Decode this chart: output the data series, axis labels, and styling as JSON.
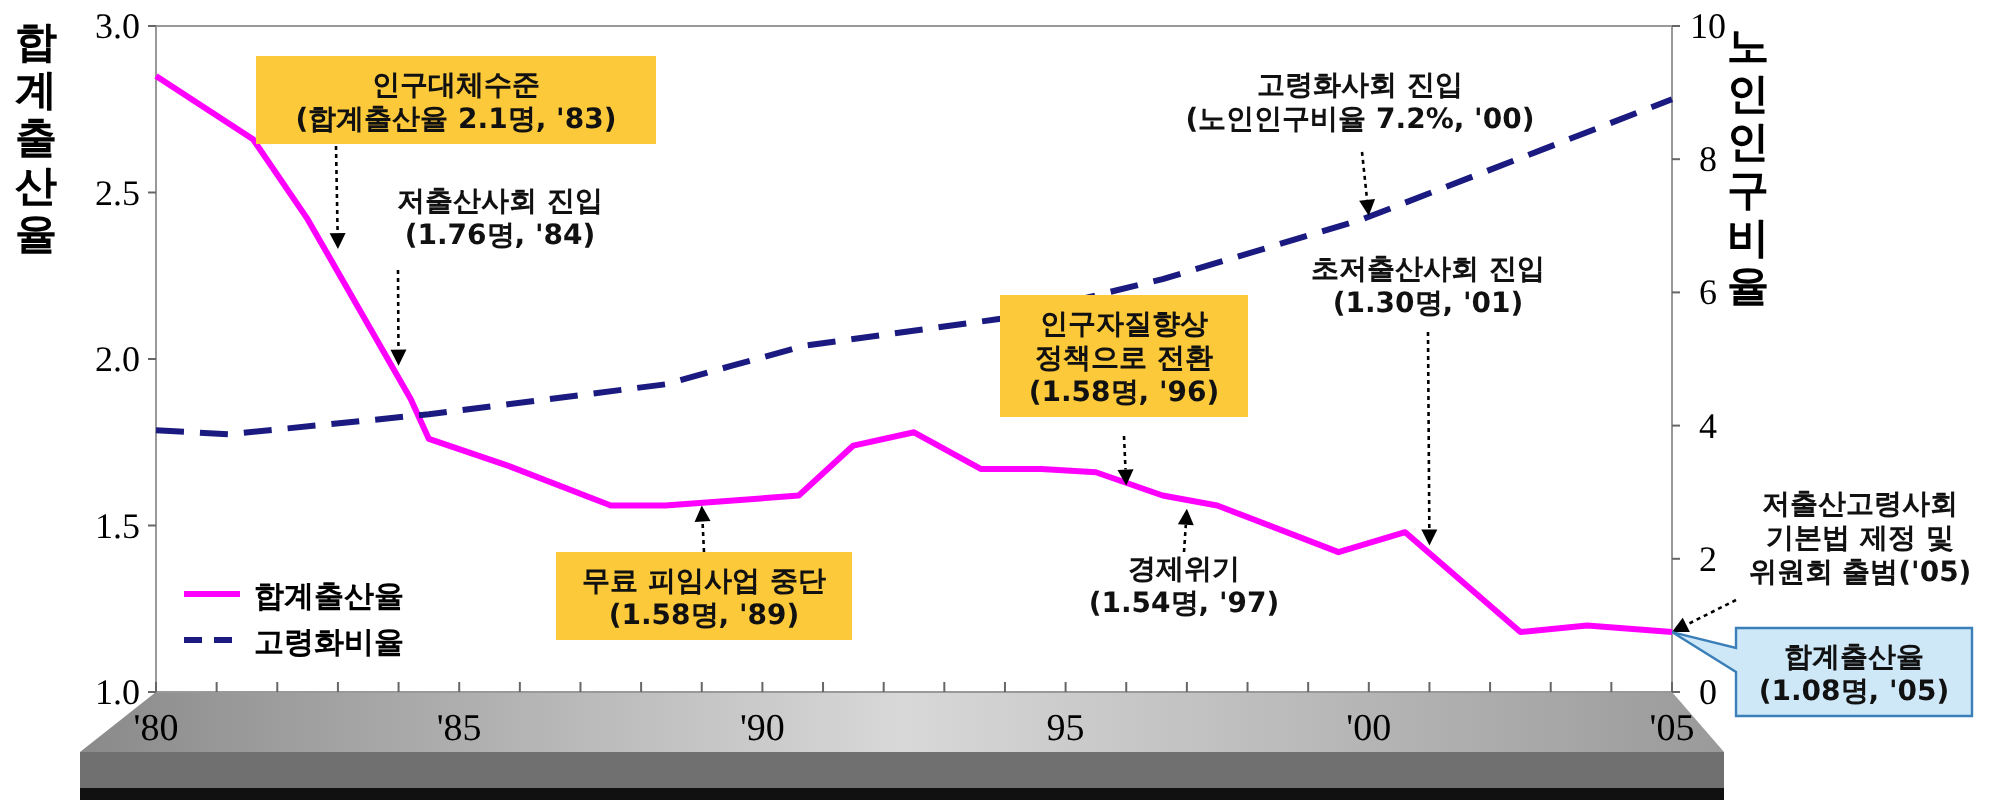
{
  "chart_data": {
    "type": "line",
    "ylabel": "합계출산율",
    "y2label": "노인인구비율",
    "xlim": [
      1980,
      2005
    ],
    "xticks": [
      {
        "value": 1980,
        "label": "'80"
      },
      {
        "value": 1981,
        "label": null
      },
      {
        "value": 1982,
        "label": null
      },
      {
        "value": 1983,
        "label": null
      },
      {
        "value": 1984,
        "label": null
      },
      {
        "value": 1985,
        "label": "'85"
      },
      {
        "value": 1986,
        "label": null
      },
      {
        "value": 1987,
        "label": null
      },
      {
        "value": 1988,
        "label": null
      },
      {
        "value": 1989,
        "label": null
      },
      {
        "value": 1990,
        "label": "'90"
      },
      {
        "value": 1991,
        "label": null
      },
      {
        "value": 1992,
        "label": null
      },
      {
        "value": 1993,
        "label": null
      },
      {
        "value": 1994,
        "label": null
      },
      {
        "value": 1995,
        "label": "95"
      },
      {
        "value": 1996,
        "label": null
      },
      {
        "value": 1997,
        "label": null
      },
      {
        "value": 1998,
        "label": null
      },
      {
        "value": 1999,
        "label": null
      },
      {
        "value": 2000,
        "label": "'00"
      },
      {
        "value": 2001,
        "label": null
      },
      {
        "value": 2002,
        "label": null
      },
      {
        "value": 2003,
        "label": null
      },
      {
        "value": 2004,
        "label": null
      },
      {
        "value": 2005,
        "label": "'05"
      }
    ],
    "ylim": [
      1.0,
      3.0
    ],
    "yticks": [
      {
        "value": 1.0,
        "label": "1.0"
      },
      {
        "value": 1.5,
        "label": "1.5"
      },
      {
        "value": 2.0,
        "label": "2.0"
      },
      {
        "value": 2.5,
        "label": "2.5"
      },
      {
        "value": 3.0,
        "label": "3.0"
      }
    ],
    "y2lim": [
      0,
      10
    ],
    "y2ticks": [
      0,
      2,
      4,
      6,
      8,
      10
    ],
    "legend": "bottom left",
    "series": [
      {
        "name": "합계출산율",
        "color": "#ff00ff",
        "line_style": "solid",
        "x": [
          1980,
          1981.6,
          1982.5,
          1984.2,
          1984.5,
          1985.8,
          1987.5,
          1988.4,
          1990.6,
          1991.5,
          1992.5,
          1993.6,
          1994.6,
          1995.5,
          1996.6,
          1997.5,
          1999.5,
          2000.6,
          2002.5,
          2003.6,
          2005
        ],
        "values": [
          2.85,
          2.66,
          2.42,
          1.88,
          1.76,
          1.68,
          1.56,
          1.56,
          1.59,
          1.74,
          1.78,
          1.67,
          1.67,
          1.66,
          1.59,
          1.56,
          1.42,
          1.48,
          1.18,
          1.2,
          1.18
        ]
      },
      {
        "name": "고령화비율",
        "color": "#1a1a80",
        "line_style": "dashed",
        "axis": "y2",
        "x": [
          1980,
          1981.2,
          1984.5,
          1988.4,
          1989.5,
          1990.7,
          1993.9,
          1996.6,
          1999.9,
          2005
        ],
        "values": [
          3.93,
          3.87,
          4.17,
          4.62,
          4.9,
          5.2,
          5.6,
          6.2,
          7.1,
          8.9
        ]
      }
    ],
    "annotations": [
      {
        "text": "인구대체수준\n(합계출산율 2.1명, '83)",
        "x": 1983,
        "y": 2.33
      },
      {
        "text": "저출산사회 진입\n(1.76명, '84)",
        "x": 1984,
        "y": 1.98
      },
      {
        "text": "무료 피임사업 중단\n(1.58명, '89)",
        "x": 1989,
        "y": 1.56
      },
      {
        "text": "인구자질향상\n정책으로 전환\n(1.58명, '96)",
        "x": 1996,
        "y": 1.62
      },
      {
        "text": "경제위기\n(1.54명, '97)",
        "x": 1997,
        "y": 1.55
      },
      {
        "text": "초저출산사회 진입\n(1.30명, '01)",
        "x": 2001,
        "y": 1.44
      },
      {
        "text": "고령화사회 진입\n(노인인구비율 7.2%, '00)",
        "x": 2000,
        "y": 2.43
      },
      {
        "text": "저출산고령사회\n기본법 제정 및\n위원회 출범('05)",
        "x": 2005,
        "y": 1.18
      },
      "합계출산율\n(1.08명, '05)"
    ]
  }
}
